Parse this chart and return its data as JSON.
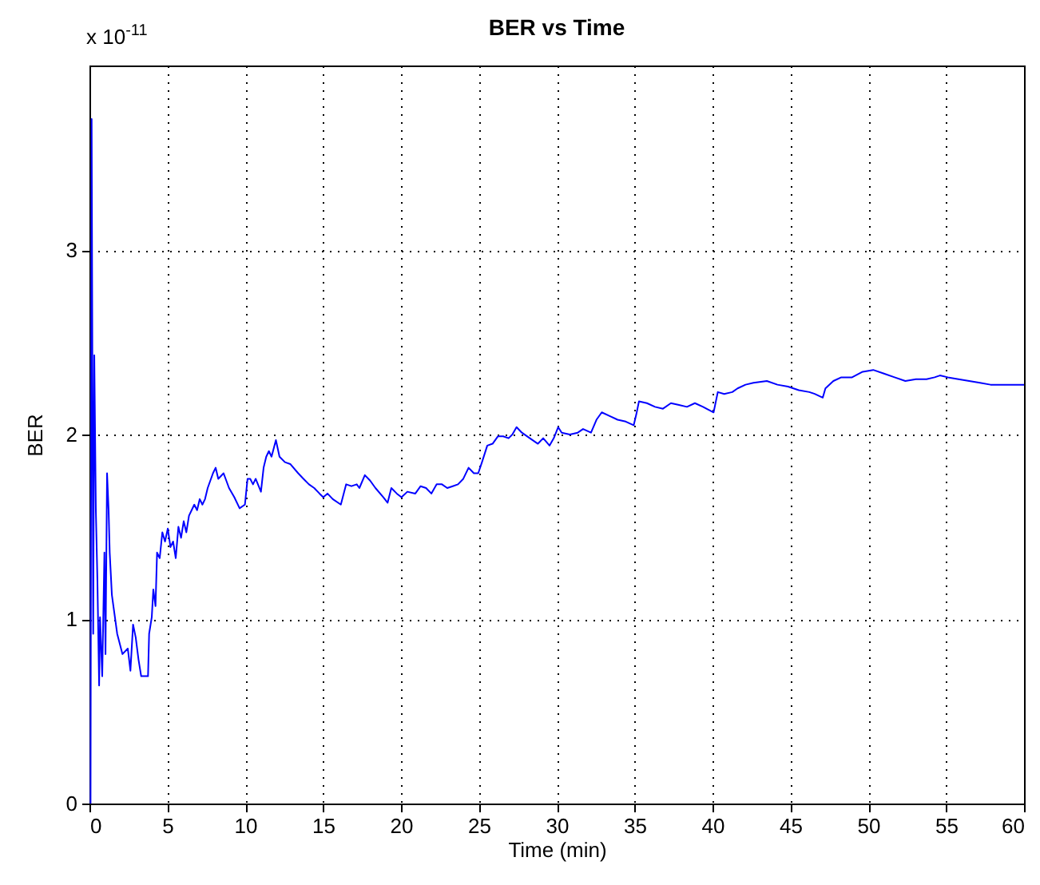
{
  "chart_data": {
    "type": "line",
    "title": "BER vs Time",
    "xlabel": "Time (min)",
    "ylabel": "BER",
    "annotations": [
      "x 10$^{-11}$"
    ],
    "xlim": [
      0,
      60
    ],
    "xticks": [
      0,
      5,
      10,
      15,
      20,
      25,
      30,
      35,
      40,
      45,
      50,
      55,
      60
    ],
    "ylim": [
      0,
      4
    ],
    "yticks": [
      0,
      1,
      2,
      3
    ],
    "grid": true,
    "series": [
      {
        "color": "#0000ff",
        "x": [
          0.07,
          0.14,
          0.24,
          0.31,
          0.41,
          0.51,
          0.62,
          0.68,
          0.82,
          0.96,
          1.03,
          1.13,
          1.23,
          1.3,
          1.44,
          1.78,
          2.12,
          2.46,
          2.63,
          2.8,
          2.97,
          3.15,
          3.32,
          3.76,
          3.83,
          4.0,
          4.1,
          4.24,
          4.34,
          4.51,
          4.68,
          4.85,
          5.03,
          5.2,
          5.37,
          5.54,
          5.71,
          5.88,
          6.05,
          6.22,
          6.39,
          6.56,
          6.73,
          6.91,
          7.08,
          7.25,
          7.42,
          7.59,
          7.93,
          8.1,
          8.27,
          8.61,
          8.96,
          9.3,
          9.64,
          9.98,
          10.15,
          10.32,
          10.5,
          10.67,
          11.01,
          11.18,
          11.35,
          11.52,
          11.69,
          11.97,
          12.2,
          12.55,
          12.89,
          13.4,
          13.74,
          14.09,
          14.43,
          14.77,
          15.01,
          15.28,
          15.62,
          16.14,
          16.48,
          16.82,
          17.16,
          17.33,
          17.68,
          18.02,
          18.36,
          18.87,
          19.14,
          19.38,
          19.73,
          20.03,
          20.41,
          20.92,
          21.26,
          21.61,
          21.95,
          22.29,
          22.63,
          22.97,
          23.32,
          23.66,
          24.0,
          24.34,
          24.68,
          24.96,
          25.2,
          25.54,
          25.88,
          26.22,
          26.56,
          26.91,
          27.15,
          27.42,
          27.76,
          28.27,
          28.79,
          29.13,
          29.54,
          29.81,
          30.09,
          30.32,
          30.84,
          31.35,
          31.69,
          32.2,
          32.55,
          32.89,
          33.4,
          33.91,
          34.43,
          34.94,
          35.11,
          35.28,
          35.79,
          36.31,
          36.82,
          37.33,
          37.85,
          38.36,
          38.87,
          39.39,
          40.07,
          40.34,
          40.75,
          41.27,
          41.61,
          42.12,
          42.63,
          43.49,
          44.17,
          44.85,
          45.54,
          46.22,
          46.56,
          47.08,
          47.25,
          47.76,
          48.27,
          48.96,
          49.64,
          50.32,
          51.01,
          51.69,
          52.38,
          53.06,
          53.74,
          54.26,
          54.6,
          55.11,
          55.79,
          56.48,
          57.17,
          57.85,
          58.53,
          59.22,
          60
        ],
        "values": [
          0,
          3.71,
          0.92,
          2.43,
          1.59,
          1.21,
          0.64,
          1.01,
          0.69,
          1.36,
          0.81,
          1.79,
          1.59,
          1.36,
          1.13,
          0.92,
          0.81,
          0.84,
          0.72,
          0.97,
          0.9,
          0.78,
          0.69,
          0.69,
          0.92,
          1.01,
          1.16,
          1.07,
          1.36,
          1.33,
          1.47,
          1.42,
          1.49,
          1.39,
          1.42,
          1.33,
          1.5,
          1.44,
          1.53,
          1.47,
          1.56,
          1.59,
          1.62,
          1.59,
          1.65,
          1.62,
          1.65,
          1.71,
          1.79,
          1.82,
          1.76,
          1.79,
          1.71,
          1.66,
          1.6,
          1.62,
          1.76,
          1.76,
          1.73,
          1.76,
          1.69,
          1.82,
          1.88,
          1.91,
          1.88,
          1.97,
          1.88,
          1.85,
          1.84,
          1.79,
          1.76,
          1.73,
          1.71,
          1.68,
          1.66,
          1.68,
          1.65,
          1.62,
          1.73,
          1.72,
          1.73,
          1.71,
          1.78,
          1.75,
          1.71,
          1.66,
          1.63,
          1.71,
          1.68,
          1.66,
          1.69,
          1.68,
          1.72,
          1.71,
          1.68,
          1.73,
          1.73,
          1.71,
          1.72,
          1.73,
          1.76,
          1.82,
          1.79,
          1.79,
          1.85,
          1.94,
          1.95,
          1.99,
          1.99,
          1.98,
          2.0,
          2.04,
          2.01,
          1.98,
          1.95,
          1.98,
          1.94,
          1.98,
          2.04,
          2.01,
          2.0,
          2.01,
          2.03,
          2.01,
          2.08,
          2.12,
          2.1,
          2.08,
          2.07,
          2.05,
          2.11,
          2.18,
          2.17,
          2.15,
          2.14,
          2.17,
          2.16,
          2.15,
          2.17,
          2.15,
          2.12,
          2.23,
          2.22,
          2.23,
          2.25,
          2.27,
          2.28,
          2.29,
          2.27,
          2.26,
          2.24,
          2.23,
          2.22,
          2.2,
          2.25,
          2.29,
          2.31,
          2.31,
          2.34,
          2.35,
          2.33,
          2.31,
          2.29,
          2.3,
          2.3,
          2.31,
          2.32,
          2.31,
          2.3,
          2.29,
          2.28,
          2.27,
          2.27,
          2.27,
          2.27
        ]
      }
    ]
  }
}
